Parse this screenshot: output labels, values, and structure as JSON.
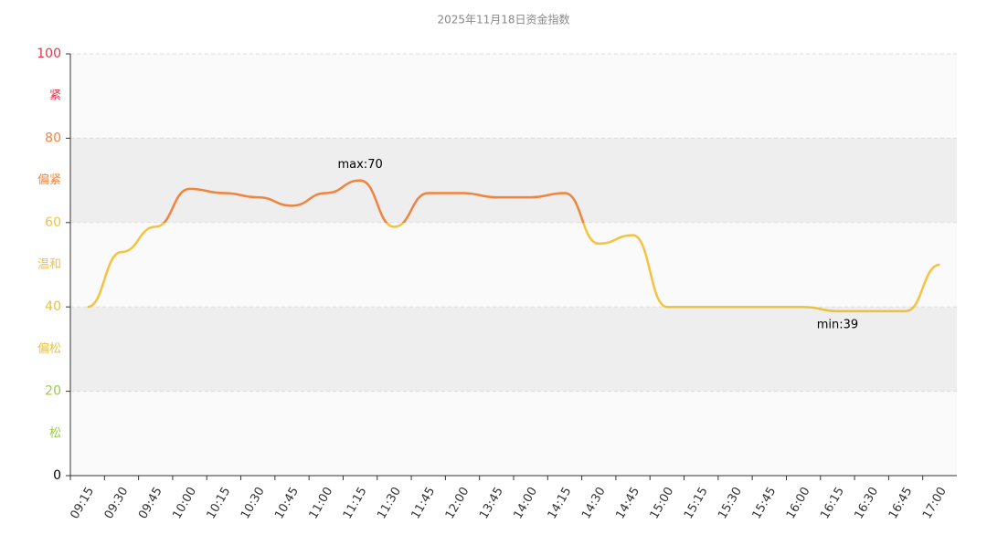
{
  "chart_data": {
    "type": "line",
    "title": "2025年11月18日资金指数",
    "categories": [
      "09:15",
      "09:30",
      "09:45",
      "10:00",
      "10:15",
      "10:30",
      "10:45",
      "11:00",
      "11:15",
      "11:30",
      "11:45",
      "12:00",
      "13:45",
      "14:00",
      "14:15",
      "14:30",
      "14:45",
      "15:00",
      "15:15",
      "15:30",
      "15:45",
      "16:00",
      "16:15",
      "16:30",
      "16:45",
      "17:00"
    ],
    "values": [
      40,
      53,
      59,
      68,
      67,
      66,
      64,
      67,
      70,
      59,
      67,
      67,
      66,
      66,
      67,
      55,
      57,
      40,
      40,
      40,
      40,
      40,
      39,
      39,
      39,
      50
    ],
    "ylim": [
      0,
      100
    ],
    "yticks": [
      0,
      20,
      40,
      60,
      80,
      100
    ],
    "grid": true,
    "bands": [
      {
        "label": "紧",
        "from": 80,
        "to": 100,
        "color": "#e8334a",
        "background": "#fafafa"
      },
      {
        "label": "偏紧",
        "from": 60,
        "to": 80,
        "color": "#f0843c",
        "background": "#eeeeee"
      },
      {
        "label": "温和",
        "from": 40,
        "to": 60,
        "color": "#f5c242",
        "background": "#fafafa"
      },
      {
        "label": "偏松",
        "from": 20,
        "to": 40,
        "color": "#e8c23c",
        "background": "#eeeeee"
      },
      {
        "label": "松",
        "from": 0,
        "to": 20,
        "color": "#9bc94a",
        "background": "#fafafa"
      }
    ],
    "annotations": [
      {
        "text": "max:70",
        "category": 8,
        "position": "above"
      },
      {
        "text": "min:39",
        "category": 22,
        "position": "below"
      }
    ]
  }
}
